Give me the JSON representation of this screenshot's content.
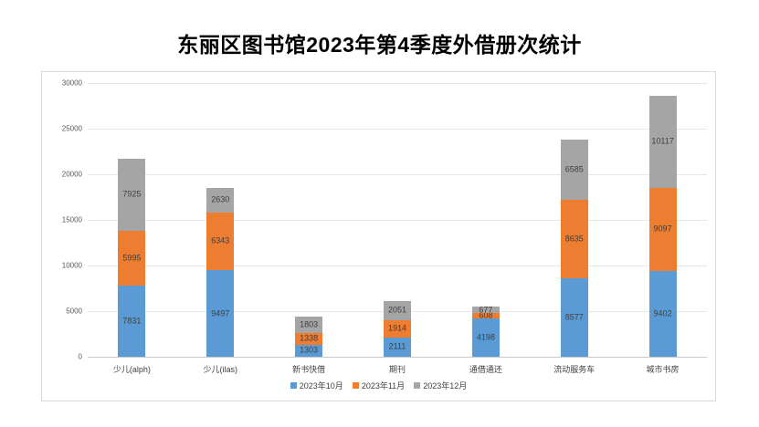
{
  "page_title": "东丽区图书馆2023年第4季度外借册次统计",
  "colors": {
    "series_blue": "#5B9BD5",
    "series_orange": "#ED7D31",
    "series_gray": "#A5A5A5",
    "gridline": "#E7E7E7",
    "card_border": "#D9D9D9",
    "label_text": "#3F3F3F"
  },
  "chart_data": {
    "type": "bar",
    "stacked": true,
    "title": "东丽区图书馆2023年第4季度外借册次统计",
    "categories": [
      "少儿(alph)",
      "少儿(ilas)",
      "新书快借",
      "期刊",
      "通借通还",
      "流动服务车",
      "城市书房"
    ],
    "series": [
      {
        "name": "2023年10月",
        "color": "#5B9BD5",
        "values": [
          7831,
          9497,
          1303,
          2111,
          4198,
          8577,
          9402
        ]
      },
      {
        "name": "2023年11月",
        "color": "#ED7D31",
        "values": [
          5995,
          6343,
          1338,
          1914,
          608,
          8635,
          9097
        ]
      },
      {
        "name": "2023年12月",
        "color": "#A5A5A5",
        "values": [
          7925,
          2630,
          1803,
          2051,
          677,
          6585,
          10117
        ]
      }
    ],
    "totals": [
      21751,
      18470,
      4444,
      6076,
      5483,
      23797,
      28616
    ],
    "xlabel": "",
    "ylabel": "",
    "ylim": [
      0,
      30000
    ],
    "ytick_step": 5000,
    "ytick_labels": [
      "0",
      "5000",
      "10000",
      "15000",
      "20000",
      "25000",
      "30000"
    ],
    "grid": true,
    "legend_position": "bottom",
    "data_labels_visible": true
  }
}
